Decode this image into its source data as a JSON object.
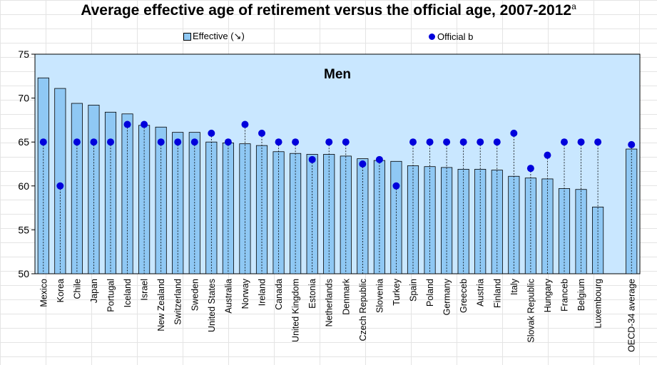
{
  "title": "Average effective age of retirement versus the official age, 2007-2012",
  "title_superscript": "a",
  "legend": {
    "effective_label": "Effective (↘)",
    "official_label": "Official b"
  },
  "colors": {
    "bar_fill": "#8fc8f4",
    "bar_edge": "#000000",
    "plot_background": "#c9e7ff",
    "marker": "#0000dc"
  },
  "chart_data": {
    "type": "bar",
    "panel_label": "Men",
    "categories": [
      "Mexico",
      "Korea",
      "Chile",
      "Japan",
      "Portugal",
      "Iceland",
      "Israel",
      "New Zealand",
      "Switzerland",
      "Sweden",
      "United States",
      "Australia",
      "Norway",
      "Ireland",
      "Canada",
      "United Kingdom",
      "Estonia",
      "Netherlands",
      "Denmark",
      "Czech Republic",
      "Slovenia",
      "Turkey",
      "Spain",
      "Poland",
      "Germany",
      "Greeceb",
      "Austria",
      "Finland",
      "Italy",
      "Slovak Republic",
      "Hungary",
      "Franceb",
      "Belgium",
      "Luxembourg",
      "",
      "OECD-34 average"
    ],
    "series": [
      {
        "name": "Effective (↘)",
        "kind": "bar",
        "values": [
          72.3,
          71.1,
          69.4,
          69.2,
          68.4,
          68.2,
          66.9,
          66.7,
          66.1,
          66.1,
          65.0,
          64.9,
          64.8,
          64.6,
          63.9,
          63.7,
          63.6,
          63.6,
          63.4,
          63.1,
          62.9,
          62.8,
          62.3,
          62.2,
          62.1,
          61.9,
          61.9,
          61.8,
          61.1,
          60.9,
          60.8,
          59.7,
          59.6,
          57.6,
          null,
          64.2
        ]
      },
      {
        "name": "Official b",
        "kind": "marker",
        "values": [
          65,
          60,
          65,
          65,
          65,
          67,
          67,
          65,
          65,
          65,
          66,
          65,
          67,
          66,
          65,
          65,
          63,
          65,
          65,
          62.5,
          63,
          60,
          65,
          65,
          65,
          65,
          65,
          65,
          66,
          62,
          63.5,
          65,
          65,
          65,
          null,
          64.7
        ]
      }
    ],
    "ylim": [
      50,
      75
    ],
    "yticks": [
      50,
      55,
      60,
      65,
      70,
      75
    ],
    "grid": false,
    "legend_position": "top"
  }
}
